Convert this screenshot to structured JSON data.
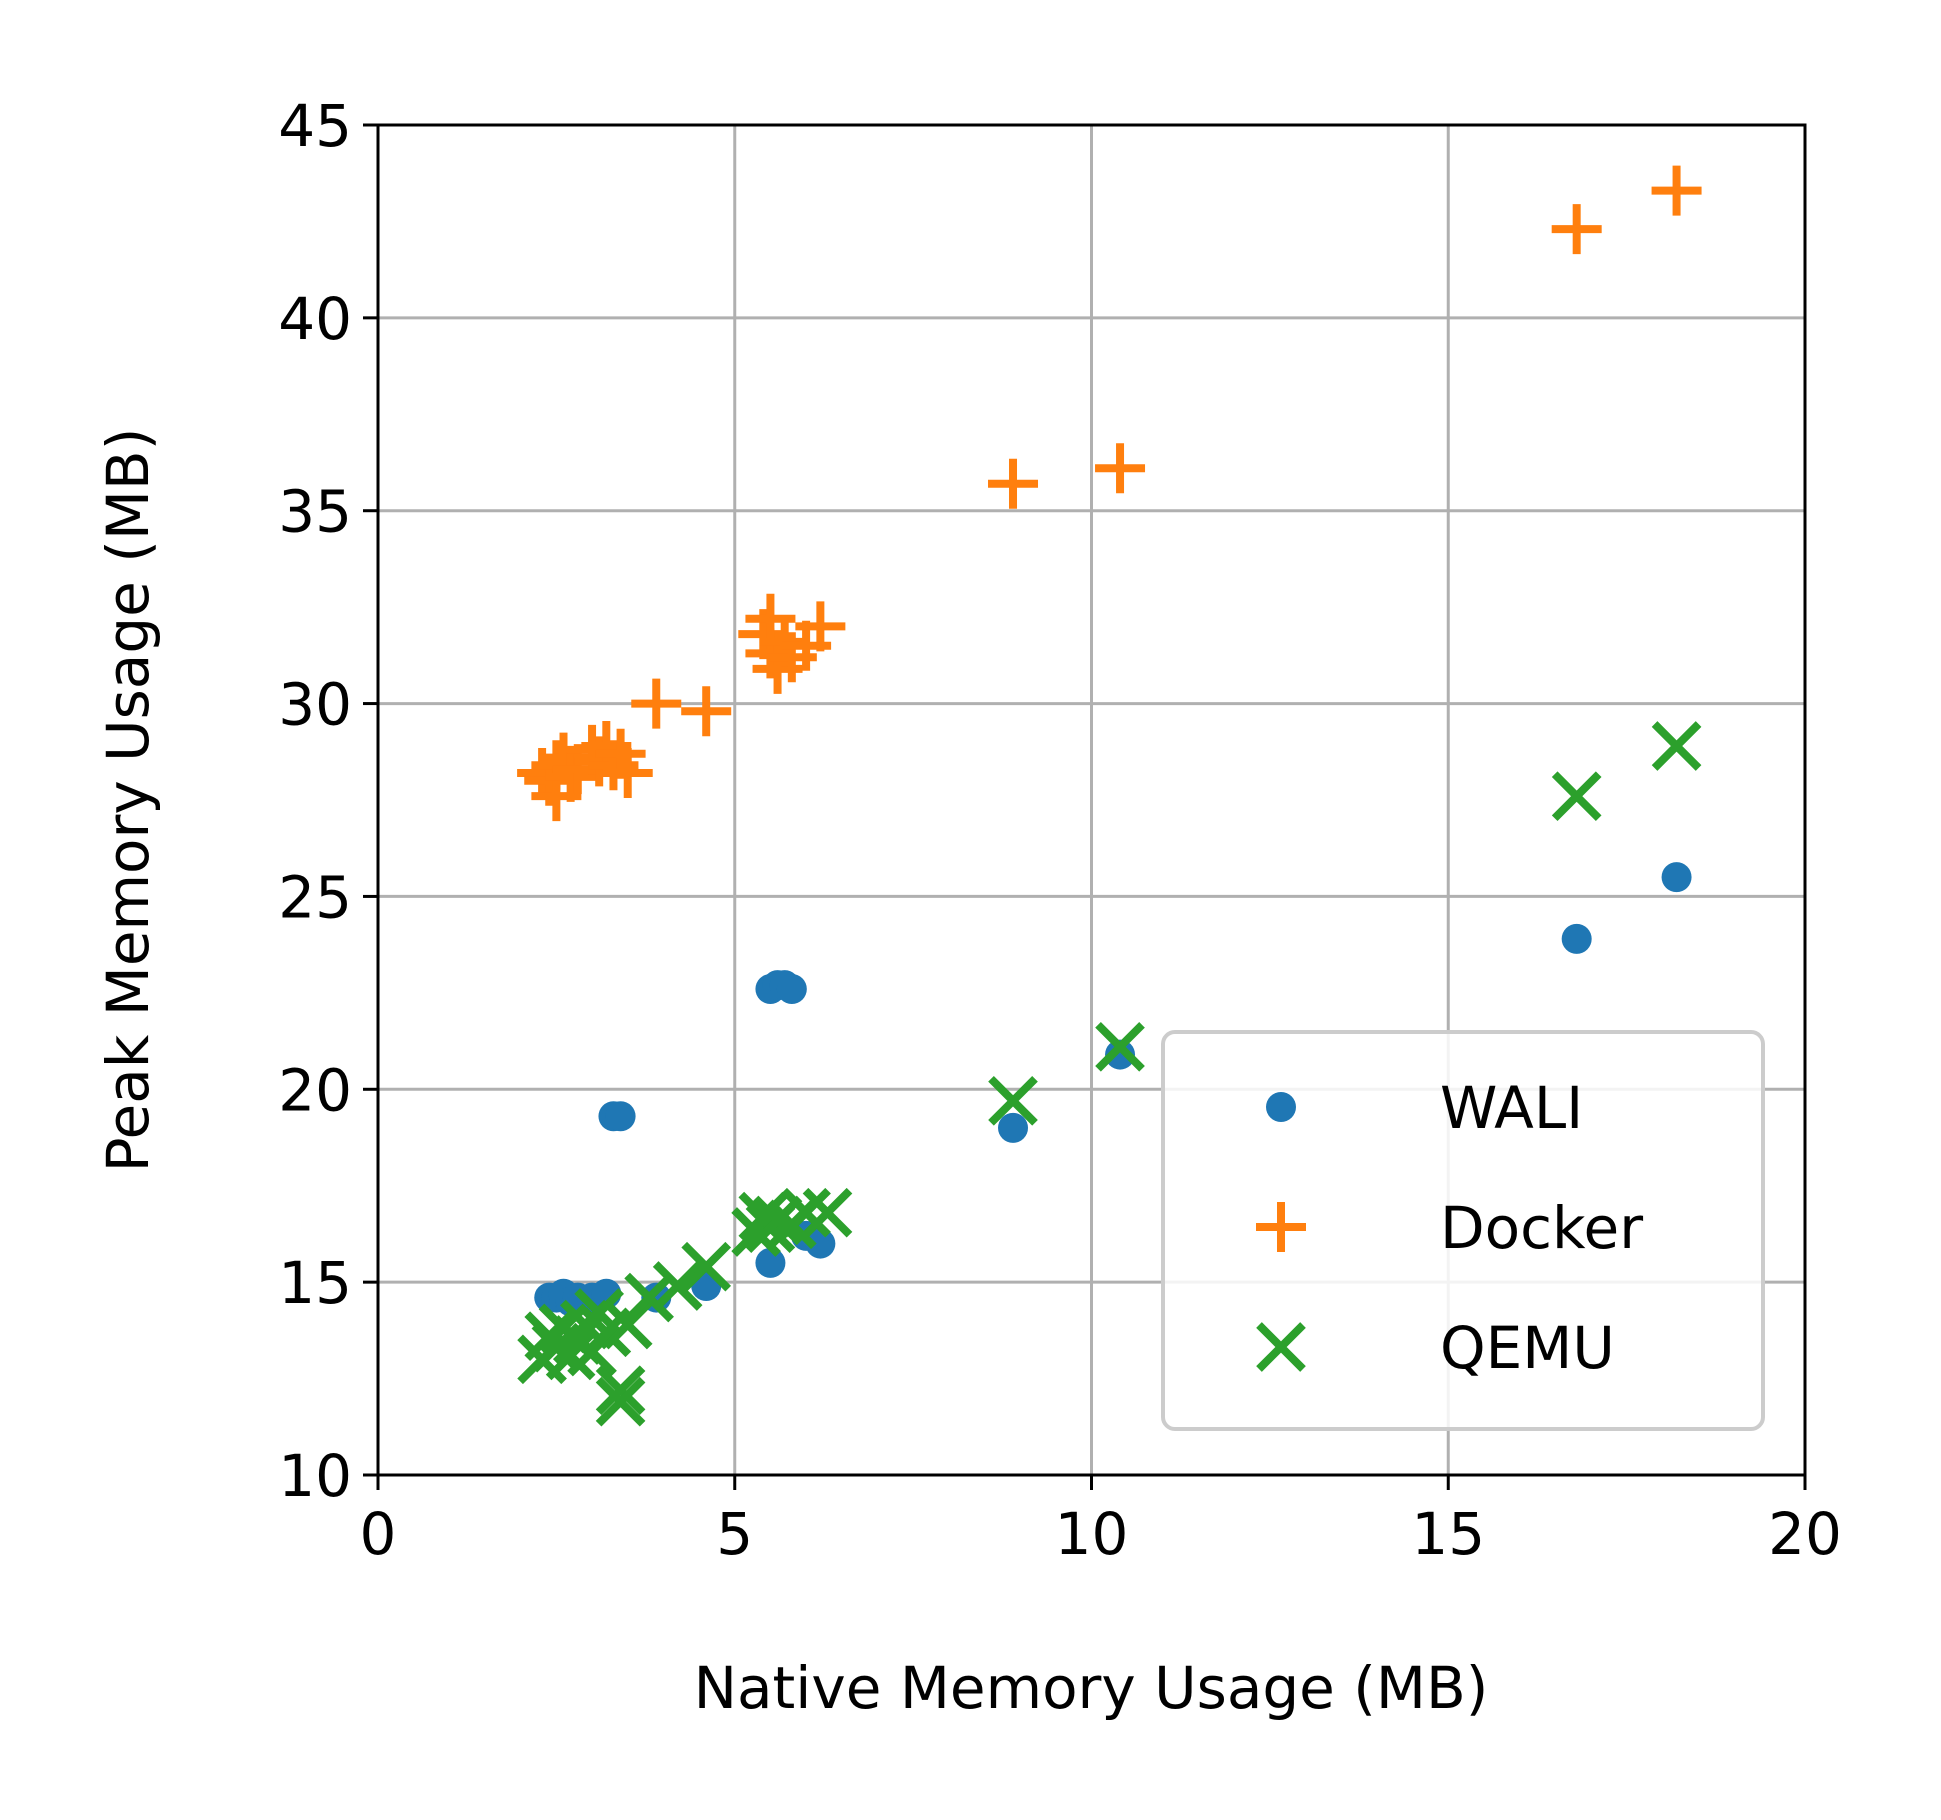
{
  "chart_data": {
    "type": "scatter",
    "xlabel": "Native Memory Usage (MB)",
    "ylabel": "Peak Memory Usage (MB)",
    "xlim": [
      0,
      20
    ],
    "ylim": [
      10,
      45
    ],
    "xticks": [
      "0",
      "5",
      "10",
      "15",
      "20"
    ],
    "yticks": [
      "10",
      "15",
      "20",
      "25",
      "30",
      "35",
      "40",
      "45"
    ],
    "grid": true,
    "legend_position": "lower-right",
    "series": [
      {
        "name": "WALI",
        "marker": "circle",
        "color": "#1f77b4",
        "points": [
          [
            2.4,
            14.6
          ],
          [
            2.5,
            14.6
          ],
          [
            2.6,
            14.7
          ],
          [
            2.7,
            14.5
          ],
          [
            2.8,
            14.6
          ],
          [
            3.0,
            14.6
          ],
          [
            3.2,
            14.7
          ],
          [
            3.3,
            19.3
          ],
          [
            3.4,
            19.3
          ],
          [
            3.9,
            14.6
          ],
          [
            4.6,
            14.9
          ],
          [
            5.5,
            15.5
          ],
          [
            5.5,
            22.6
          ],
          [
            5.6,
            22.7
          ],
          [
            5.7,
            22.7
          ],
          [
            5.8,
            22.6
          ],
          [
            6.0,
            16.2
          ],
          [
            6.2,
            16.0
          ],
          [
            8.9,
            19.0
          ],
          [
            10.4,
            20.9
          ],
          [
            16.8,
            23.9
          ],
          [
            18.2,
            25.5
          ]
        ]
      },
      {
        "name": "Docker",
        "marker": "plus",
        "color": "#ff7f0e",
        "points": [
          [
            2.3,
            28.2
          ],
          [
            2.4,
            28.0
          ],
          [
            2.5,
            28.4
          ],
          [
            2.5,
            27.6
          ],
          [
            2.6,
            28.6
          ],
          [
            2.7,
            28.1
          ],
          [
            2.8,
            28.3
          ],
          [
            3.0,
            28.8
          ],
          [
            3.1,
            28.5
          ],
          [
            3.2,
            28.9
          ],
          [
            3.3,
            28.4
          ],
          [
            3.4,
            28.7
          ],
          [
            3.5,
            28.2
          ],
          [
            3.9,
            30.0
          ],
          [
            4.6,
            29.8
          ],
          [
            5.4,
            31.8
          ],
          [
            5.5,
            31.3
          ],
          [
            5.5,
            32.2
          ],
          [
            5.6,
            30.9
          ],
          [
            5.7,
            31.6
          ],
          [
            5.8,
            31.2
          ],
          [
            6.0,
            31.5
          ],
          [
            6.2,
            32.0
          ],
          [
            8.9,
            35.7
          ],
          [
            10.4,
            36.1
          ],
          [
            16.8,
            42.3
          ],
          [
            18.2,
            43.3
          ]
        ]
      },
      {
        "name": "QEMU",
        "marker": "x",
        "color": "#2ca02c",
        "points": [
          [
            2.3,
            13.0
          ],
          [
            2.4,
            13.6
          ],
          [
            2.5,
            13.3
          ],
          [
            2.6,
            13.8
          ],
          [
            2.7,
            13.1
          ],
          [
            2.8,
            13.5
          ],
          [
            2.9,
            13.9
          ],
          [
            3.0,
            13.2
          ],
          [
            3.1,
            14.2
          ],
          [
            3.2,
            13.7
          ],
          [
            3.4,
            12.2
          ],
          [
            3.4,
            11.9
          ],
          [
            3.5,
            13.9
          ],
          [
            3.8,
            14.6
          ],
          [
            4.2,
            14.9
          ],
          [
            4.6,
            15.4
          ],
          [
            5.3,
            16.3
          ],
          [
            5.4,
            16.7
          ],
          [
            5.5,
            16.4
          ],
          [
            5.6,
            16.6
          ],
          [
            5.8,
            16.5
          ],
          [
            6.0,
            16.8
          ],
          [
            6.3,
            16.8
          ],
          [
            8.9,
            19.7
          ],
          [
            10.4,
            21.1
          ],
          [
            16.8,
            27.6
          ],
          [
            18.2,
            28.9
          ]
        ]
      }
    ]
  }
}
